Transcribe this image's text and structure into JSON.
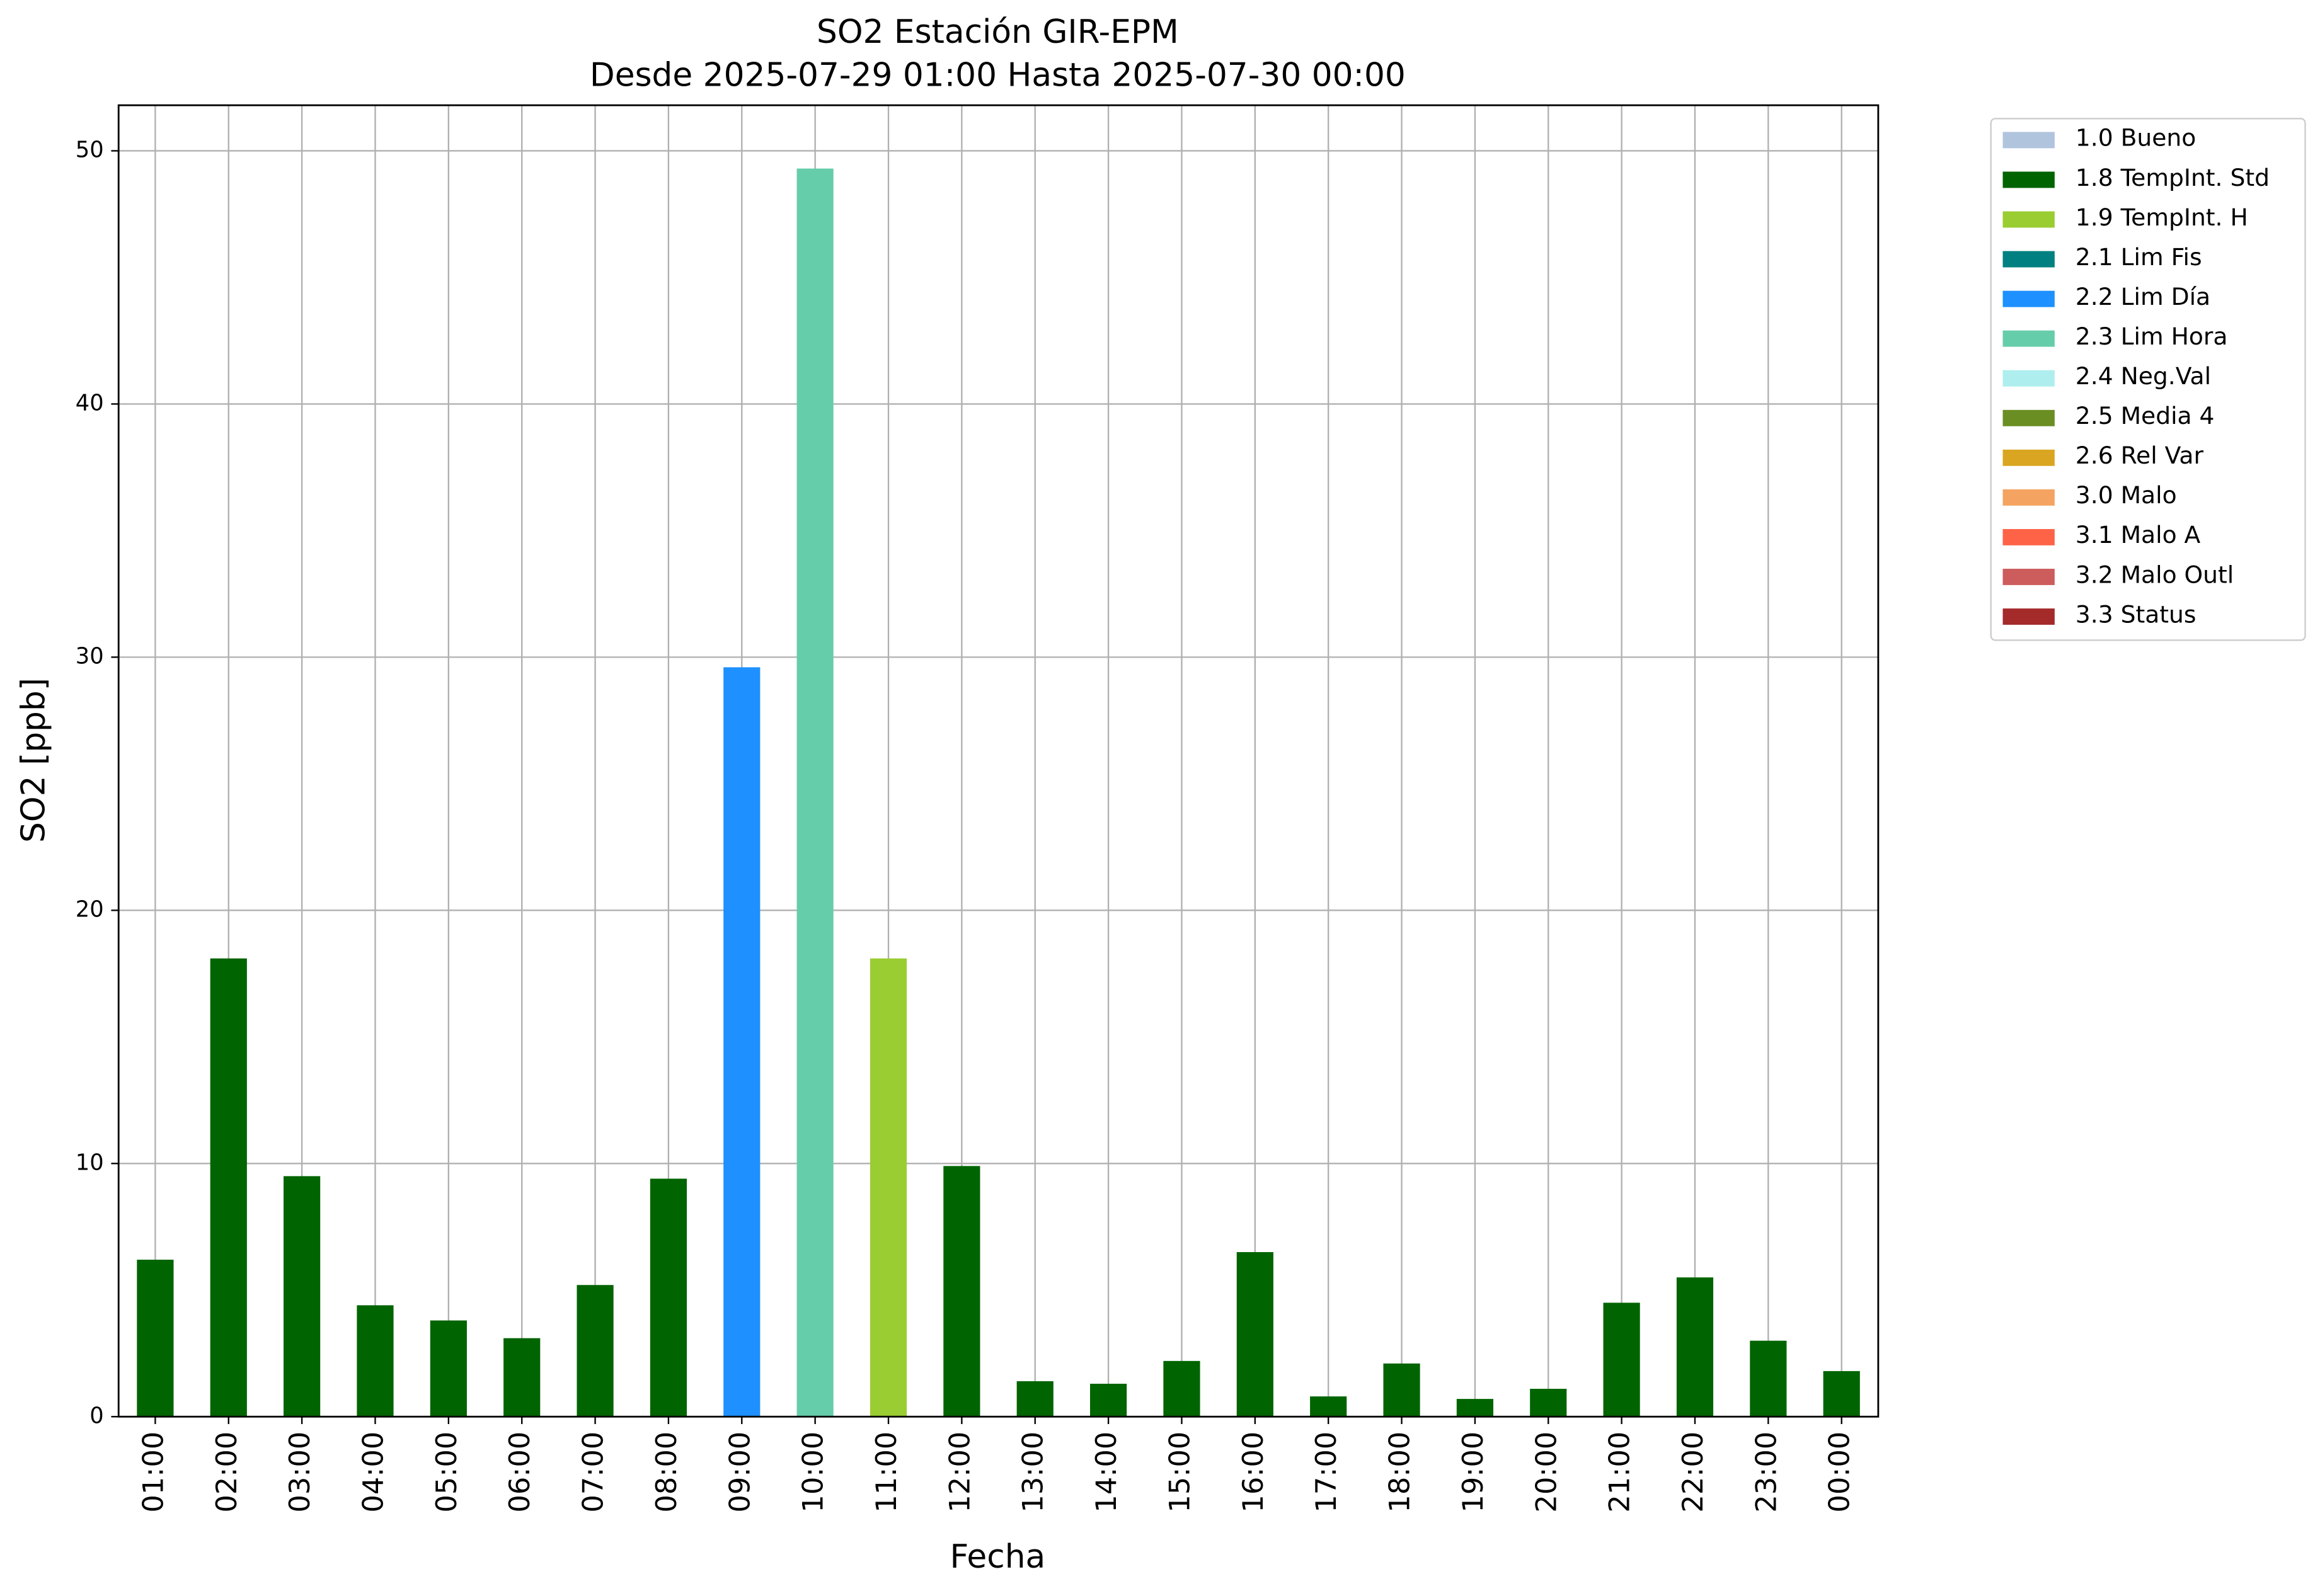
{
  "chart_data": {
    "type": "bar",
    "title": "SO2 Estación GIR-EPM",
    "subtitle": "Desde 2025-07-29 01:00 Hasta 2025-07-30 00:00",
    "x_label": "Fecha",
    "y_label": "SO2 [ppb]",
    "categories": [
      "01:00",
      "02:00",
      "03:00",
      "04:00",
      "05:00",
      "06:00",
      "07:00",
      "08:00",
      "09:00",
      "10:00",
      "11:00",
      "12:00",
      "13:00",
      "14:00",
      "15:00",
      "16:00",
      "17:00",
      "18:00",
      "19:00",
      "20:00",
      "21:00",
      "22:00",
      "23:00",
      "00:00"
    ],
    "values": [
      6.2,
      18.1,
      9.5,
      4.4,
      3.8,
      3.1,
      5.2,
      9.4,
      29.6,
      49.3,
      18.1,
      9.9,
      1.4,
      1.3,
      2.2,
      6.5,
      0.8,
      2.1,
      0.7,
      1.1,
      4.5,
      5.5,
      3.0,
      1.8
    ],
    "colors": [
      "#006400",
      "#006400",
      "#006400",
      "#006400",
      "#006400",
      "#006400",
      "#006400",
      "#006400",
      "#1e90ff",
      "#66cdaa",
      "#9acd32",
      "#006400",
      "#006400",
      "#006400",
      "#006400",
      "#006400",
      "#006400",
      "#006400",
      "#006400",
      "#006400",
      "#006400",
      "#006400",
      "#006400",
      "#006400"
    ],
    "ylim": [
      0,
      51.8
    ],
    "yticks": [
      0,
      10,
      20,
      30,
      40,
      50
    ],
    "grid": true,
    "legend_position": "outside-right",
    "legend": [
      {
        "name": "1.0 Bueno",
        "color": "#b0c4de"
      },
      {
        "name": "1.8 TempInt. Std",
        "color": "#006400"
      },
      {
        "name": "1.9 TempInt. H",
        "color": "#9acd32"
      },
      {
        "name": "2.1 Lim Fis",
        "color": "#008080"
      },
      {
        "name": "2.2 Lim Día",
        "color": "#1e90ff"
      },
      {
        "name": "2.3 Lim Hora",
        "color": "#66cdaa"
      },
      {
        "name": "2.4 Neg.Val",
        "color": "#afeeee"
      },
      {
        "name": "2.5 Media 4",
        "color": "#6b8e23"
      },
      {
        "name": "2.6 Rel Var",
        "color": "#daa520"
      },
      {
        "name": "3.0 Malo",
        "color": "#f4a460"
      },
      {
        "name": "3.1 Malo A",
        "color": "#ff6347"
      },
      {
        "name": "3.2 Malo Outl",
        "color": "#cd5c5c"
      },
      {
        "name": "3.3 Status",
        "color": "#a52a2a"
      }
    ]
  }
}
